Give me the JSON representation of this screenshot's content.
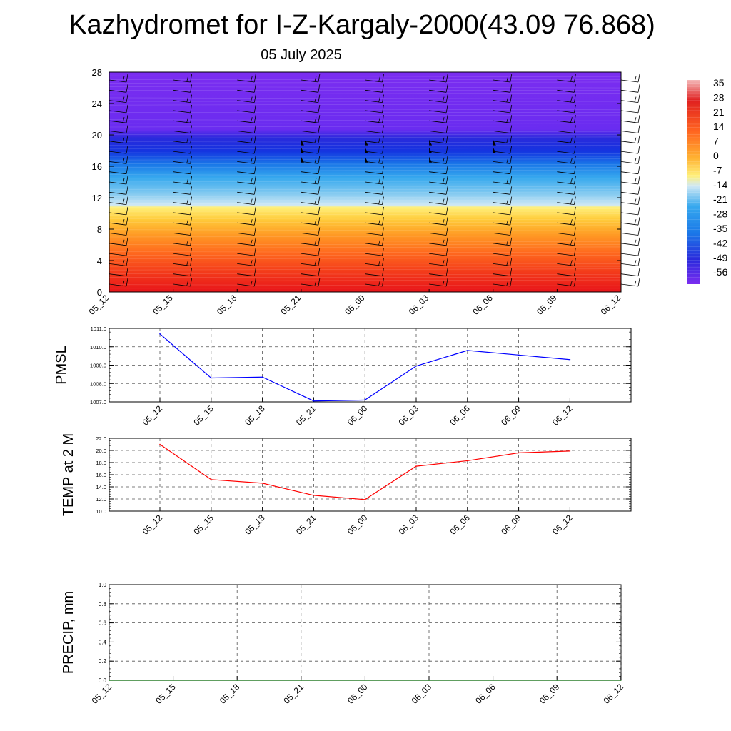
{
  "header": {
    "title": "Kazhydromet for I-Z-Kargaly-2000(43.09 76.868)",
    "date": "05 July 2025"
  },
  "colors": {
    "pmsl_line": "#0000ff",
    "temp_line": "#ff0000",
    "precip_line": "#006400",
    "grid": "#555555"
  },
  "chart_data": [
    {
      "id": "profile",
      "type": "heatmap",
      "title": "",
      "x_ticks": [
        "05_12",
        "05_15",
        "05_18",
        "05_21",
        "06_00",
        "06_03",
        "06_06",
        "06_09",
        "06_12"
      ],
      "y_ticks": [
        "0",
        "4",
        "8",
        "12",
        "16",
        "20",
        "24",
        "28"
      ],
      "ylim": [
        0,
        28
      ],
      "barb_columns": [
        "05_12",
        "05_15",
        "05_18",
        "05_21",
        "06_00",
        "06_03",
        "06_06",
        "06_09",
        "06_12"
      ],
      "colorbar_labels": [
        "35",
        "28",
        "21",
        "14",
        "7",
        "0",
        "-7",
        "-14",
        "-21",
        "-28",
        "-35",
        "-42",
        "-49",
        "-56"
      ]
    },
    {
      "id": "pmsl",
      "type": "line",
      "ylabel": "PMSL",
      "x": [
        "05_12",
        "05_15",
        "05_18",
        "05_21",
        "06_00",
        "06_03",
        "06_06",
        "06_09",
        "06_12"
      ],
      "values": [
        1010.7,
        1008.3,
        1008.35,
        1007.05,
        1007.1,
        1008.95,
        1009.8,
        1009.55,
        1009.3
      ],
      "ylim": [
        1007.0,
        1011.0
      ],
      "y_ticks": [
        "1007.0",
        "1008.0",
        "1009.0",
        "1010.0",
        "1011.0"
      ],
      "grid": true
    },
    {
      "id": "temp",
      "type": "line",
      "ylabel": "TEMP at 2 M",
      "x": [
        "05_12",
        "05_15",
        "05_18",
        "05_21",
        "06_00",
        "06_03",
        "06_06",
        "06_09",
        "06_12"
      ],
      "values": [
        21.0,
        15.2,
        14.6,
        12.6,
        11.9,
        17.4,
        18.3,
        19.6,
        19.9
      ],
      "ylim": [
        10.0,
        22.0
      ],
      "y_ticks": [
        "10.0",
        "12.0",
        "14.0",
        "16.0",
        "18.0",
        "20.0",
        "22.0"
      ],
      "grid": true
    },
    {
      "id": "precip",
      "type": "line",
      "ylabel": "PRECIP, mm",
      "x": [
        "05_12",
        "05_15",
        "05_18",
        "05_21",
        "06_00",
        "06_03",
        "06_06",
        "06_09",
        "06_12"
      ],
      "values": [
        0,
        0,
        0,
        0,
        0,
        0,
        0,
        0,
        0
      ],
      "ylim": [
        0.0,
        1.0
      ],
      "y_ticks": [
        "0.0",
        "0.2",
        "0.4",
        "0.6",
        "0.8",
        "1.0"
      ],
      "grid": true
    }
  ]
}
